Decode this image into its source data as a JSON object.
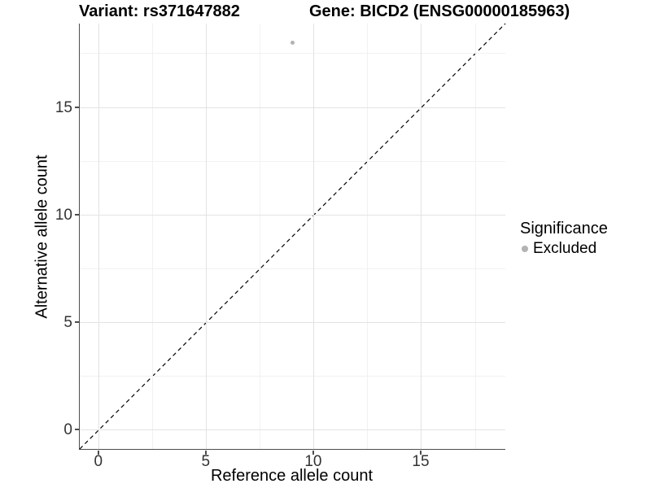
{
  "chart_data": {
    "type": "scatter",
    "title_variant": "Variant: rs371647882",
    "title_gene": "Gene: BICD2 (ENSG00000185963)",
    "xlabel": "Reference allele count",
    "ylabel": "Alternative allele count",
    "xlim": [
      -0.9,
      18.9
    ],
    "ylim": [
      -0.9,
      18.9
    ],
    "x_ticks": [
      0,
      5,
      10,
      15
    ],
    "y_ticks": [
      0,
      5,
      10,
      15
    ],
    "minor_ticks": [
      2.5,
      7.5,
      12.5,
      17.5
    ],
    "grid": "major+minor",
    "points": [
      {
        "x": 9,
        "y": 18,
        "significance": "Excluded"
      }
    ],
    "identity_line": {
      "style": "dashed",
      "from": -0.9,
      "to": 18.9,
      "color": "#000000"
    },
    "legend": {
      "title": "Significance",
      "position": "right",
      "items": [
        {
          "label": "Excluded",
          "color": "#b3b3b3"
        }
      ]
    }
  },
  "colors": {
    "background": "#ffffff",
    "axis_line": "#4d4d4d",
    "grid_major": "#e3e3e3",
    "grid_minor": "#f1f1f1",
    "point": "#b3b3b3",
    "text": "#000000",
    "tick_text": "#333333"
  }
}
